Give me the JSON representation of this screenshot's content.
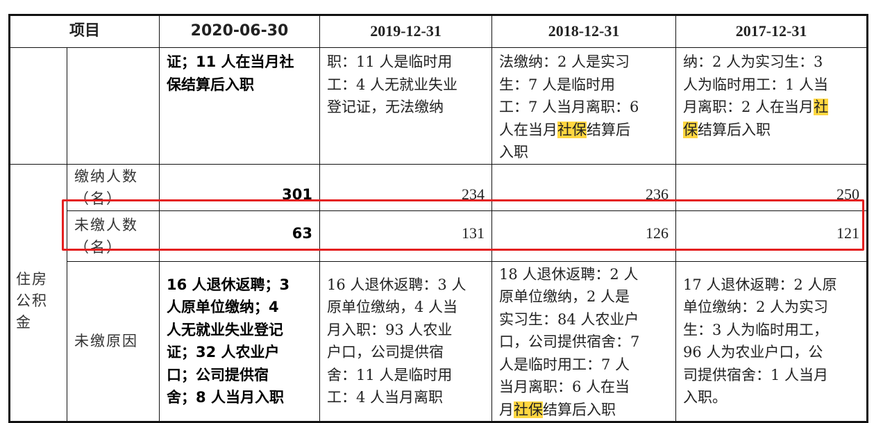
{
  "header": {
    "item": "项目",
    "dates": [
      "2020-06-30",
      "2019-12-31",
      "2018-12-31",
      "2017-12-31"
    ]
  },
  "highlight_color": "#ffd640",
  "highlight_term": "社保",
  "row_continued": {
    "cells": [
      [
        "证；11 人在当月社",
        "保结算后入职"
      ],
      [
        "职：11 人是临时用",
        "工：4 人无就业失业",
        "登记证，无法缴纳"
      ],
      [
        "法缴纳：2 人是实习",
        "生：7 人是临时用",
        "工：7 人当月离职：6",
        "人在当月社保结算后",
        "入职"
      ],
      [
        "纳：2 人为实习生：3",
        "人为临时用工：1 人当",
        "月离职：2 人在当月社",
        "保结算后入职"
      ]
    ]
  },
  "housing_fund": {
    "group_label": [
      "住房",
      "公积",
      "金"
    ],
    "paid": {
      "label": [
        "缴纳人数",
        "（名）"
      ],
      "values": [
        "301",
        "234",
        "236",
        "250"
      ]
    },
    "unpaid": {
      "label": [
        "未缴人数",
        "（名）"
      ],
      "values": [
        "63",
        "131",
        "126",
        "121"
      ]
    },
    "reasons": {
      "label": "未缴原因",
      "cells": [
        [
          "16 人退休返聘；3",
          "人原单位缴纳；4",
          "人无就业失业登记",
          "证；32 人农业户",
          "口；公司提供宿",
          "舍；8 人当月入职"
        ],
        [
          "16 人退休返聘：3 人",
          "原单位缴纳，4 人当",
          "月入职：93 人农业",
          "户口，公司提供宿",
          "舍：11 人是临时用",
          "工：4 人当月离职"
        ],
        [
          "18 人退休返聘：2 人",
          "原单位缴纳，2 人是",
          "实习生：84 人农业户",
          "口，公司提供宿舍：7",
          "人是临时用工：7 人",
          "当月离职：6 人在当",
          "月社保结算后入职"
        ],
        [
          "17 人退休返聘：2 人原",
          "单位缴纳：2 人为实习",
          "生：3 人为临时用工，",
          "96 人为农业户口，公",
          "司提供宿舍：1 人当月",
          "入职。"
        ]
      ]
    }
  },
  "emphasis_box_color": "#e41f1f"
}
